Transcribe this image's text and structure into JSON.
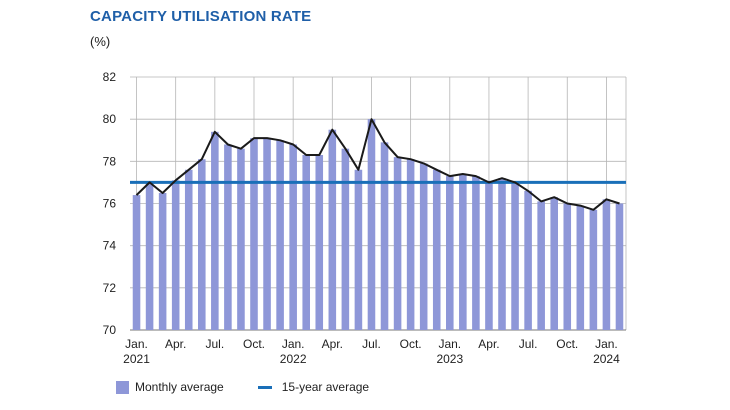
{
  "chart_data": {
    "type": "bar",
    "title": "CAPACITY UTILISATION RATE",
    "ylabel": "(%)",
    "ylim": [
      70,
      82
    ],
    "yticks": [
      70,
      72,
      74,
      76,
      78,
      80,
      82
    ],
    "xtick_labels": [
      {
        "index": 0,
        "line1": "Jan.",
        "line2": "2021"
      },
      {
        "index": 3,
        "line1": "Apr.",
        "line2": ""
      },
      {
        "index": 6,
        "line1": "Jul.",
        "line2": ""
      },
      {
        "index": 9,
        "line1": "Oct.",
        "line2": ""
      },
      {
        "index": 12,
        "line1": "Jan.",
        "line2": "2022"
      },
      {
        "index": 15,
        "line1": "Apr.",
        "line2": ""
      },
      {
        "index": 18,
        "line1": "Jul.",
        "line2": ""
      },
      {
        "index": 21,
        "line1": "Oct.",
        "line2": ""
      },
      {
        "index": 24,
        "line1": "Jan.",
        "line2": "2023"
      },
      {
        "index": 27,
        "line1": "Apr.",
        "line2": ""
      },
      {
        "index": 30,
        "line1": "Jul.",
        "line2": ""
      },
      {
        "index": 33,
        "line1": "Oct.",
        "line2": ""
      },
      {
        "index": 36,
        "line1": "Jan.",
        "line2": "2024"
      }
    ],
    "series": [
      {
        "name": "Monthly average",
        "type": "bar",
        "color": "#8e97d8",
        "values": [
          76.4,
          77.0,
          76.5,
          77.1,
          77.6,
          78.1,
          79.4,
          78.8,
          78.6,
          79.1,
          79.1,
          79.0,
          78.8,
          78.3,
          78.3,
          79.5,
          78.6,
          77.6,
          80.0,
          78.9,
          78.2,
          78.1,
          77.9,
          77.6,
          77.3,
          77.4,
          77.3,
          77.0,
          77.2,
          77.0,
          76.6,
          76.1,
          76.3,
          76.0,
          75.9,
          75.7,
          76.2,
          76.0
        ]
      },
      {
        "name": "Monthly average (line)",
        "type": "line",
        "color": "#1a1a1a",
        "values": [
          76.4,
          77.0,
          76.5,
          77.1,
          77.6,
          78.1,
          79.4,
          78.8,
          78.6,
          79.1,
          79.1,
          79.0,
          78.8,
          78.3,
          78.3,
          79.5,
          78.6,
          77.6,
          80.0,
          78.9,
          78.2,
          78.1,
          77.9,
          77.6,
          77.3,
          77.4,
          77.3,
          77.0,
          77.2,
          77.0,
          76.6,
          76.1,
          76.3,
          76.0,
          75.9,
          75.7,
          76.2,
          76.0
        ]
      },
      {
        "name": "15-year average",
        "type": "hline",
        "color": "#1a6fb8",
        "value": 77.0
      }
    ],
    "legend": [
      "Monthly average",
      "15-year average"
    ],
    "grid": true
  }
}
